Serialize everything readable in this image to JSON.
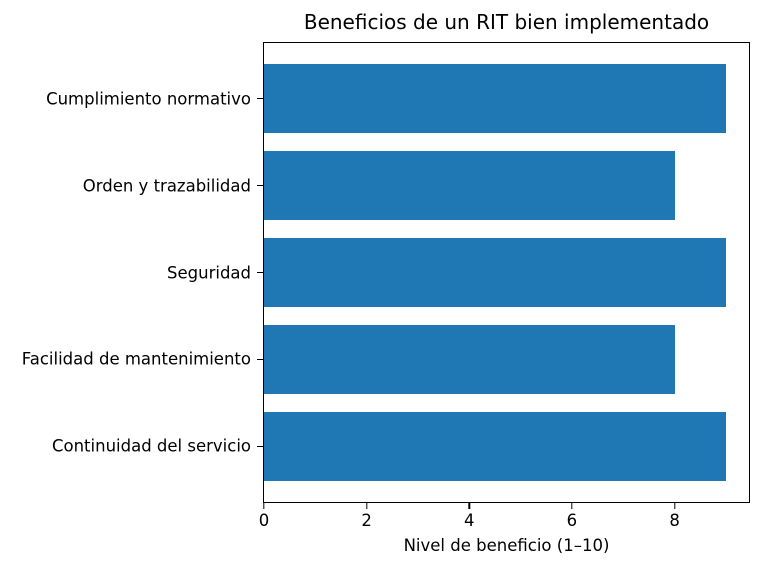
{
  "chart_data": {
    "type": "bar",
    "orientation": "horizontal",
    "title": "Beneficios de un RIT bien implementado",
    "categories": [
      "Cumplimiento normativo",
      "Orden y trazabilidad",
      "Seguridad",
      "Facilidad de mantenimiento",
      "Continuidad del servicio"
    ],
    "values": [
      9,
      8,
      9,
      8,
      9
    ],
    "xlabel": "Nivel de beneficio (1–10)",
    "ylabel": "",
    "xticks": [
      0,
      2,
      4,
      6,
      8
    ],
    "xlim": [
      0,
      9.45
    ],
    "ylim": [
      -0.64,
      4.64
    ],
    "bar_height_fraction": 0.8,
    "grid": false,
    "legend": false,
    "bar_color": "#1f77b4",
    "axis_color": "#000000",
    "text_color": "#000000",
    "background": "#ffffff"
  }
}
